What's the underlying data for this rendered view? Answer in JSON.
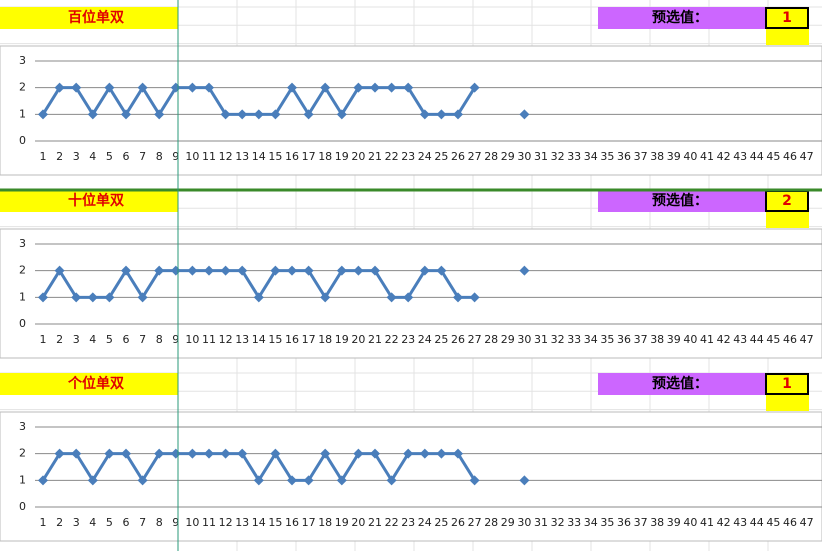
{
  "chart_data": [
    {
      "type": "line",
      "label": "百位单双",
      "preset_label": "预选值：",
      "preset_value": 1,
      "categories": [
        1,
        2,
        3,
        4,
        5,
        6,
        7,
        8,
        9,
        10,
        11,
        12,
        13,
        14,
        15,
        16,
        17,
        18,
        19,
        20,
        21,
        22,
        23,
        24,
        25,
        26,
        27,
        28,
        29,
        30,
        31,
        32,
        33,
        34,
        35,
        36,
        37,
        38,
        39,
        40,
        41,
        42,
        43,
        44,
        45,
        46,
        47
      ],
      "values": [
        1,
        2,
        2,
        1,
        2,
        1,
        2,
        1,
        2,
        2,
        2,
        1,
        1,
        1,
        1,
        2,
        1,
        2,
        1,
        2,
        2,
        2,
        2,
        1,
        1,
        1,
        2,
        null,
        null,
        1,
        null,
        null,
        null,
        null,
        null,
        null,
        null,
        null,
        null,
        null,
        null,
        null,
        null,
        null,
        null,
        null,
        null
      ],
      "color": "#4a7ebb",
      "ylim": [
        0,
        3
      ],
      "yticks": [
        0,
        1,
        2,
        3
      ],
      "grid": true
    },
    {
      "type": "line",
      "label": "十位单双",
      "preset_label": "预选值：",
      "preset_value": 2,
      "categories": [
        1,
        2,
        3,
        4,
        5,
        6,
        7,
        8,
        9,
        10,
        11,
        12,
        13,
        14,
        15,
        16,
        17,
        18,
        19,
        20,
        21,
        22,
        23,
        24,
        25,
        26,
        27,
        28,
        29,
        30,
        31,
        32,
        33,
        34,
        35,
        36,
        37,
        38,
        39,
        40,
        41,
        42,
        43,
        44,
        45,
        46,
        47
      ],
      "values": [
        1,
        2,
        1,
        1,
        1,
        2,
        1,
        2,
        2,
        2,
        2,
        2,
        2,
        1,
        2,
        2,
        2,
        1,
        2,
        2,
        2,
        1,
        1,
        2,
        2,
        1,
        1,
        null,
        null,
        2,
        null,
        null,
        null,
        null,
        null,
        null,
        null,
        null,
        null,
        null,
        null,
        null,
        null,
        null,
        null,
        null,
        null
      ],
      "color": "#4a7ebb",
      "ylim": [
        0,
        3
      ],
      "yticks": [
        0,
        1,
        2,
        3
      ],
      "grid": true
    },
    {
      "type": "line",
      "label": "个位单双",
      "preset_label": "预选值：",
      "preset_value": 1,
      "categories": [
        1,
        2,
        3,
        4,
        5,
        6,
        7,
        8,
        9,
        10,
        11,
        12,
        13,
        14,
        15,
        16,
        17,
        18,
        19,
        20,
        21,
        22,
        23,
        24,
        25,
        26,
        27,
        28,
        29,
        30,
        31,
        32,
        33,
        34,
        35,
        36,
        37,
        38,
        39,
        40,
        41,
        42,
        43,
        44,
        45,
        46,
        47
      ],
      "values": [
        1,
        2,
        2,
        1,
        2,
        2,
        1,
        2,
        2,
        2,
        2,
        2,
        2,
        1,
        2,
        1,
        1,
        2,
        1,
        2,
        2,
        1,
        2,
        2,
        2,
        2,
        1,
        null,
        null,
        1,
        null,
        null,
        null,
        null,
        null,
        null,
        null,
        null,
        null,
        null,
        null,
        null,
        null,
        null,
        null,
        null,
        null
      ],
      "color": "#4a7ebb",
      "ylim": [
        0,
        3
      ],
      "yticks": [
        0,
        1,
        2,
        3
      ],
      "grid": true
    }
  ]
}
